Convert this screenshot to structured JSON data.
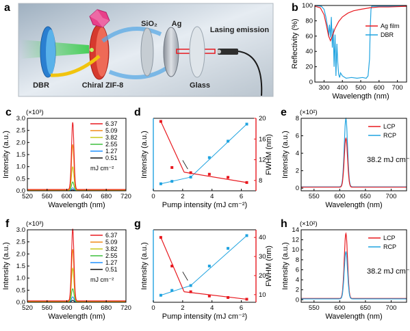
{
  "panel_labels": {
    "a": "a",
    "b": "b",
    "c": "c",
    "d": "d",
    "e": "e",
    "f": "f",
    "g": "g",
    "h": "h"
  },
  "diagram": {
    "sio2": "SiO₂",
    "ag": "Ag",
    "lasing": "Lasing emission",
    "dbr": "DBR",
    "zif": "Chiral ZIF-8",
    "glass": "Glass"
  },
  "colors": {
    "red": "#e8181e",
    "blue": "#1fa3e0",
    "black": "#000000",
    "c_series": [
      "#e8181e",
      "#f08a17",
      "#c9c81a",
      "#3bbf3b",
      "#1e90ff",
      "#111111"
    ]
  },
  "chart_data": [
    {
      "id": "b",
      "type": "line",
      "xlabel": "Wavelength (nm)",
      "ylabel": "Reflectivity (%)",
      "xlim": [
        250,
        750
      ],
      "ylim": [
        0,
        100
      ],
      "xticks": [
        "300",
        "400",
        "500",
        "600",
        "700"
      ],
      "yticks": [
        "0",
        "20",
        "40",
        "60",
        "80",
        "100"
      ],
      "legend": "top-right",
      "series": [
        {
          "name": "Ag film",
          "color": "#e8181e",
          "x": [
            250,
            280,
            300,
            315,
            325,
            335,
            345,
            360,
            380,
            400,
            430,
            460,
            500,
            550,
            600,
            650,
            700,
            750
          ],
          "y": [
            99,
            97,
            88,
            72,
            60,
            54,
            60,
            70,
            79,
            85,
            90,
            93,
            95,
            97,
            98,
            98,
            98.5,
            99
          ]
        },
        {
          "name": "DBR",
          "color": "#1fa3e0",
          "x": [
            250,
            285,
            300,
            310,
            315,
            320,
            325,
            330,
            335,
            340,
            345,
            350,
            355,
            360,
            365,
            370,
            375,
            380,
            385,
            390,
            400,
            420,
            450,
            480,
            510,
            530,
            540,
            548,
            552,
            556,
            560,
            600,
            650,
            700,
            750
          ],
          "y": [
            100,
            99,
            95,
            85,
            78,
            72,
            60,
            75,
            58,
            85,
            45,
            70,
            20,
            62,
            8,
            50,
            25,
            10,
            6,
            12,
            8,
            5,
            6,
            5,
            6,
            5,
            8,
            30,
            70,
            95,
            99,
            99,
            99,
            99,
            99
          ]
        }
      ]
    },
    {
      "id": "c",
      "type": "line",
      "xlabel": "Wavelength (nm)",
      "ylabel": "Intensity (a.u.)",
      "multiplier": "(×10³)",
      "unit_note": "mJ cm⁻²",
      "xlim": [
        520,
        720
      ],
      "ylim": [
        0,
        3.0
      ],
      "xticks": [
        "520",
        "560",
        "600",
        "640",
        "680",
        "720"
      ],
      "yticks": [
        "0.0",
        "0.5",
        "1.0",
        "1.5",
        "2.0",
        "2.5",
        "3.0"
      ],
      "center": 612,
      "width": 3.5,
      "series": [
        {
          "name": "6.37",
          "peak": 2.78
        },
        {
          "name": "5.09",
          "peak": 1.88
        },
        {
          "name": "3.82",
          "peak": 0.97
        },
        {
          "name": "2.55",
          "peak": 0.36
        },
        {
          "name": "1.27",
          "peak": 0.12
        },
        {
          "name": "0.51",
          "peak": 0.04
        }
      ]
    },
    {
      "id": "d",
      "type": "scatter",
      "xlabel": "Pump intensity (mJ cm⁻²)",
      "ylabel": "Intensity (a.u.)",
      "y2label": "FWHM (nm)",
      "xlim": [
        0,
        7
      ],
      "y2lim": [
        6,
        20
      ],
      "xticks": [
        "0",
        "2",
        "4",
        "6"
      ],
      "y2ticks": [
        "8",
        "12",
        "16",
        "20"
      ],
      "intensity": {
        "x": [
          0.51,
          1.27,
          2.55,
          3.82,
          5.09,
          6.37
        ],
        "y": [
          0.02,
          0.06,
          0.13,
          0.45,
          0.72,
          1.0
        ]
      },
      "fwhm": {
        "x": [
          0.51,
          1.27,
          2.55,
          3.82,
          5.09,
          6.37
        ],
        "y": [
          19.4,
          10.5,
          9.5,
          9.2,
          8.6,
          7.6
        ]
      }
    },
    {
      "id": "e",
      "type": "line",
      "xlabel": "Wavelength (nm)",
      "ylabel": "Intensity (a.u.)",
      "multiplier": "(×10²)",
      "annotation": "38.2 mJ cm⁻²",
      "xlim": [
        525,
        730
      ],
      "ylim": [
        -0.3,
        8
      ],
      "xticks": [
        "550",
        "600",
        "650",
        "700"
      ],
      "yticks": [
        "0",
        "2",
        "4",
        "6",
        "8"
      ],
      "center": 612,
      "width": 4.5,
      "legend": "top-right",
      "series": [
        {
          "name": "LCP",
          "peak": 5.6
        },
        {
          "name": "RCP",
          "peak": 7.8
        }
      ]
    },
    {
      "id": "f",
      "type": "line",
      "xlabel": "Wavelength (nm)",
      "ylabel": "Intensity (a.u.)",
      "multiplier": "(×10³)",
      "unit_note": "mJ cm⁻²",
      "xlim": [
        520,
        720
      ],
      "ylim": [
        0,
        3.0
      ],
      "xticks": [
        "520",
        "560",
        "600",
        "640",
        "680",
        "720"
      ],
      "yticks": [
        "0.0",
        "0.5",
        "1.0",
        "1.5",
        "2.0",
        "2.5",
        "3.0"
      ],
      "center": 612,
      "width": 3.5,
      "series": [
        {
          "name": "6.37",
          "peak": 2.98
        },
        {
          "name": "5.09",
          "peak": 2.15
        },
        {
          "name": "3.82",
          "peak": 1.38
        },
        {
          "name": "2.55",
          "peak": 0.55
        },
        {
          "name": "1.27",
          "peak": 0.22
        },
        {
          "name": "0.51",
          "peak": 0.08
        }
      ]
    },
    {
      "id": "g",
      "type": "scatter",
      "xlabel": "Pump intensity (mJ cm⁻²)",
      "ylabel": "Intensity (a.u.)",
      "y2label": "FWHM (nm)",
      "xlim": [
        0,
        7
      ],
      "y2lim": [
        6,
        44
      ],
      "xticks": [
        "0",
        "2",
        "4",
        "6"
      ],
      "y2ticks": [
        "10",
        "20",
        "30",
        "40"
      ],
      "intensity": {
        "x": [
          0.51,
          1.27,
          2.55,
          3.82,
          5.09,
          6.37
        ],
        "y": [
          0.02,
          0.1,
          0.18,
          0.5,
          0.79,
          1.0
        ]
      },
      "fwhm": {
        "x": [
          0.51,
          1.27,
          2.55,
          3.82,
          5.09,
          6.37
        ],
        "y": [
          40,
          25,
          11.5,
          9.3,
          8.5,
          7.6
        ]
      }
    },
    {
      "id": "h",
      "type": "line",
      "xlabel": "Wavelength (nm)",
      "ylabel": "Intensity (a.u.)",
      "multiplier": "(×10²)",
      "annotation": "38.2 mJ cm⁻²",
      "xlim": [
        525,
        730
      ],
      "ylim": [
        -0.5,
        14
      ],
      "xticks": [
        "550",
        "600",
        "650",
        "700"
      ],
      "yticks": [
        "0",
        "2",
        "4",
        "6",
        "8",
        "10",
        "12",
        "14"
      ],
      "center": 612,
      "width": 4.5,
      "legend": "top-right",
      "series": [
        {
          "name": "LCP",
          "peak": 13.0
        },
        {
          "name": "RCP",
          "peak": 9.4
        }
      ]
    }
  ]
}
